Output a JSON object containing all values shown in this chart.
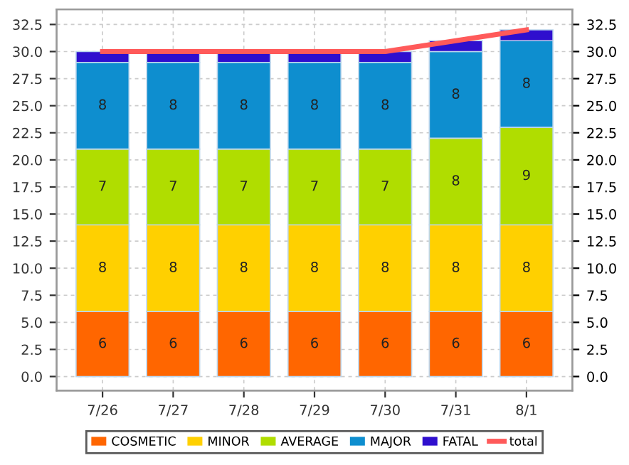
{
  "chart_data": {
    "type": "bar",
    "stacked": true,
    "categories": [
      "7/26",
      "7/27",
      "7/28",
      "7/29",
      "7/30",
      "7/31",
      "8/1"
    ],
    "series": [
      {
        "name": "COSMETIC",
        "color": "#ff6600",
        "values": [
          6,
          6,
          6,
          6,
          6,
          6,
          6
        ],
        "value_labels": [
          "6",
          "6",
          "6",
          "6",
          "6",
          "6",
          "6"
        ]
      },
      {
        "name": "MINOR",
        "color": "#ffd000",
        "values": [
          8,
          8,
          8,
          8,
          8,
          8,
          8
        ],
        "value_labels": [
          "8",
          "8",
          "8",
          "8",
          "8",
          "8",
          "8"
        ]
      },
      {
        "name": "AVERAGE",
        "color": "#b0dd00",
        "values": [
          7,
          7,
          7,
          7,
          7,
          8,
          9
        ],
        "value_labels": [
          "7",
          "7",
          "7",
          "7",
          "7",
          "8",
          "9"
        ]
      },
      {
        "name": "MAJOR",
        "color": "#0e8ecf",
        "values": [
          8,
          8,
          8,
          8,
          8,
          8,
          8
        ],
        "value_labels": [
          "8",
          "8",
          "8",
          "8",
          "8",
          "8",
          "8"
        ]
      },
      {
        "name": "FATAL",
        "color": "#2f0fce",
        "values": [
          1,
          1,
          1,
          1,
          1,
          1,
          1
        ]
      },
      {
        "name": "total",
        "type": "line",
        "color": "#ff5a5a",
        "values": [
          30,
          30,
          30,
          30,
          30,
          31,
          32
        ]
      }
    ],
    "ylim": [
      -1.3,
      33.9
    ],
    "yticks": [
      {
        "value": 0,
        "label": "0.0"
      },
      2.5,
      {
        "value": 5,
        "label": "5.0"
      },
      7.5,
      {
        "value": 10,
        "label": "10.0"
      },
      12.5,
      {
        "value": 15,
        "label": "15.0"
      },
      17.5,
      {
        "value": 20,
        "label": "20.0"
      },
      22.5,
      {
        "value": 25,
        "label": "25.0"
      },
      27.5,
      {
        "value": 30,
        "label": "30.0"
      },
      32.5
    ],
    "y2lim": [
      -1.3,
      33.9
    ],
    "y2ticks": [
      {
        "value": 0,
        "label": "0.0"
      },
      2.5,
      {
        "value": 5,
        "label": "5.0"
      },
      7.5,
      {
        "value": 10,
        "label": "10.0"
      },
      12.5,
      {
        "value": 15,
        "label": "15.0"
      },
      17.5,
      {
        "value": 20,
        "label": "20.0"
      },
      22.5,
      {
        "value": 25,
        "label": "25.0"
      },
      27.5,
      {
        "value": 30,
        "label": "30.0"
      },
      32.5
    ],
    "grid": true,
    "legend": "bottom",
    "line_style": "solid",
    "marker": "none"
  }
}
